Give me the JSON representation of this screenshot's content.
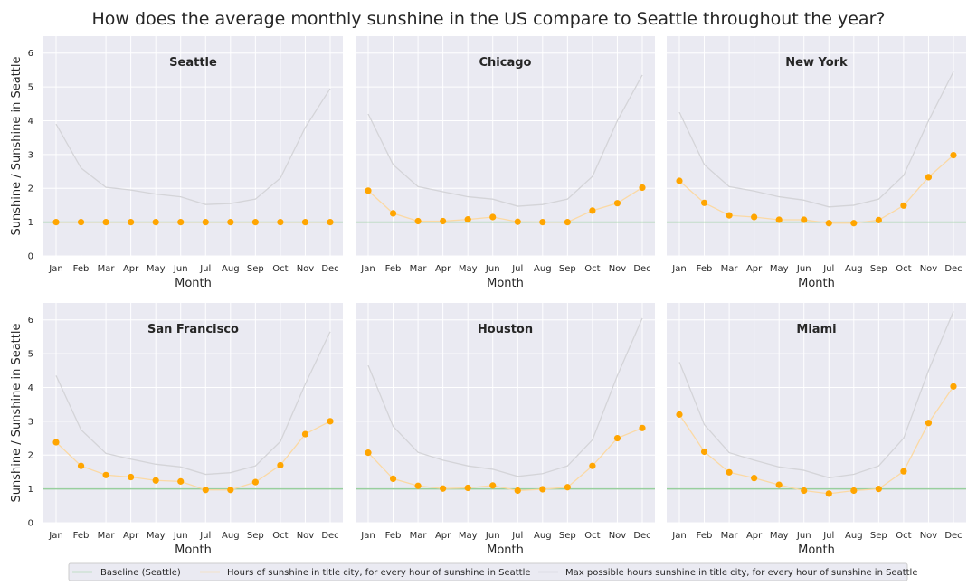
{
  "figure_title": "How does the average monthly sunshine in the US compare to Seattle throughout the year?",
  "colors": {
    "panel_bg": "#eaeaf2",
    "grid": "#ffffff",
    "baseline": "#98cf9e",
    "ratio_line": "#fbd9a4",
    "ratio_marker": "#ffa500",
    "max_line": "#d4d4d8",
    "text": "#262626"
  },
  "chart_data": [
    {
      "type": "line",
      "title": "Seattle",
      "xlabel": "Month",
      "ylabel": "Sunshine / Sunshine in Seattle",
      "categories": [
        "Jan",
        "Feb",
        "Mar",
        "Apr",
        "May",
        "Jun",
        "Jul",
        "Aug",
        "Sep",
        "Oct",
        "Nov",
        "Dec"
      ],
      "ylim": [
        0,
        6.5
      ],
      "yticks": [
        0,
        1,
        2,
        3,
        4,
        5,
        6
      ],
      "baseline": 1,
      "series": [
        {
          "name": "Hours of sunshine in title city, for every hour of sunshine in Seattle",
          "values": [
            1,
            1,
            1,
            1,
            1,
            1,
            1,
            1,
            1,
            1,
            1,
            1
          ]
        },
        {
          "name": "Max possible hours sunshine in title city, for every hour of sunshine in Seattle",
          "values": [
            3.9,
            2.6,
            2.03,
            1.95,
            1.83,
            1.75,
            1.52,
            1.55,
            1.68,
            2.3,
            3.8,
            4.95
          ]
        }
      ]
    },
    {
      "type": "line",
      "title": "Chicago",
      "xlabel": "Month",
      "ylabel": "",
      "categories": [
        "Jan",
        "Feb",
        "Mar",
        "Apr",
        "May",
        "Jun",
        "Jul",
        "Aug",
        "Sep",
        "Oct",
        "Nov",
        "Dec"
      ],
      "ylim": [
        0,
        6.5
      ],
      "baseline": 1,
      "series": [
        {
          "name": "Hours of sunshine in title city, for every hour of sunshine in Seattle",
          "values": [
            1.93,
            1.26,
            1.03,
            1.03,
            1.08,
            1.15,
            1.01,
            1.0,
            1.0,
            1.34,
            1.56,
            2.02
          ]
        },
        {
          "name": "Max possible hours sunshine in title city, for every hour of sunshine in Seattle",
          "values": [
            4.2,
            2.7,
            2.05,
            1.9,
            1.75,
            1.68,
            1.47,
            1.52,
            1.68,
            2.35,
            4.0,
            5.35
          ]
        }
      ]
    },
    {
      "type": "line",
      "title": "New York",
      "xlabel": "Month",
      "ylabel": "",
      "categories": [
        "Jan",
        "Feb",
        "Mar",
        "Apr",
        "May",
        "Jun",
        "Jul",
        "Aug",
        "Sep",
        "Oct",
        "Nov",
        "Dec"
      ],
      "ylim": [
        0,
        6.5
      ],
      "baseline": 1,
      "series": [
        {
          "name": "Hours of sunshine in title city, for every hour of sunshine in Seattle",
          "values": [
            2.22,
            1.57,
            1.2,
            1.15,
            1.07,
            1.07,
            0.97,
            0.97,
            1.06,
            1.49,
            2.33,
            2.98
          ]
        },
        {
          "name": "Max possible hours sunshine in title city, for every hour of sunshine in Seattle",
          "values": [
            4.25,
            2.7,
            2.05,
            1.92,
            1.75,
            1.65,
            1.45,
            1.5,
            1.68,
            2.38,
            4.0,
            5.45
          ]
        }
      ]
    },
    {
      "type": "line",
      "title": "San Francisco",
      "xlabel": "Month",
      "ylabel": "Sunshine / Sunshine in Seattle",
      "categories": [
        "Jan",
        "Feb",
        "Mar",
        "Apr",
        "May",
        "Jun",
        "Jul",
        "Aug",
        "Sep",
        "Oct",
        "Nov",
        "Dec"
      ],
      "ylim": [
        0,
        6.5
      ],
      "yticks": [
        0,
        1,
        2,
        3,
        4,
        5,
        6
      ],
      "baseline": 1,
      "series": [
        {
          "name": "Hours of sunshine in title city, for every hour of sunshine in Seattle",
          "values": [
            2.38,
            1.68,
            1.41,
            1.35,
            1.25,
            1.22,
            0.97,
            0.97,
            1.2,
            1.7,
            2.62,
            3.0
          ]
        },
        {
          "name": "Max possible hours sunshine in title city, for every hour of sunshine in Seattle",
          "values": [
            4.35,
            2.75,
            2.05,
            1.88,
            1.73,
            1.65,
            1.43,
            1.48,
            1.68,
            2.4,
            4.1,
            5.65
          ]
        }
      ]
    },
    {
      "type": "line",
      "title": "Houston",
      "xlabel": "Month",
      "ylabel": "",
      "categories": [
        "Jan",
        "Feb",
        "Mar",
        "Apr",
        "May",
        "Jun",
        "Jul",
        "Aug",
        "Sep",
        "Oct",
        "Nov",
        "Dec"
      ],
      "ylim": [
        0,
        6.5
      ],
      "baseline": 1,
      "series": [
        {
          "name": "Hours of sunshine in title city, for every hour of sunshine in Seattle",
          "values": [
            2.07,
            1.3,
            1.09,
            1.01,
            1.03,
            1.1,
            0.95,
            0.99,
            1.05,
            1.68,
            2.5,
            2.8
          ]
        },
        {
          "name": "Max possible hours sunshine in title city, for every hour of sunshine in Seattle",
          "values": [
            4.65,
            2.85,
            2.08,
            1.85,
            1.68,
            1.58,
            1.37,
            1.45,
            1.68,
            2.45,
            4.35,
            6.05
          ]
        }
      ]
    },
    {
      "type": "line",
      "title": "Miami",
      "xlabel": "Month",
      "ylabel": "",
      "categories": [
        "Jan",
        "Feb",
        "Mar",
        "Apr",
        "May",
        "Jun",
        "Jul",
        "Aug",
        "Sep",
        "Oct",
        "Nov",
        "Dec"
      ],
      "ylim": [
        0,
        6.5
      ],
      "baseline": 1,
      "series": [
        {
          "name": "Hours of sunshine in title city, for every hour of sunshine in Seattle",
          "values": [
            3.2,
            2.1,
            1.49,
            1.32,
            1.12,
            0.95,
            0.86,
            0.95,
            1.0,
            1.52,
            2.95,
            4.03
          ]
        },
        {
          "name": "Max possible hours sunshine in title city, for every hour of sunshine in Seattle",
          "values": [
            4.75,
            2.9,
            2.07,
            1.85,
            1.65,
            1.55,
            1.33,
            1.43,
            1.68,
            2.5,
            4.5,
            6.25
          ]
        }
      ]
    }
  ],
  "legend": {
    "placement": "bottom",
    "items": [
      {
        "label": "Baseline (Seattle)",
        "kind": "baseline"
      },
      {
        "label": "Hours of sunshine in title city, for every hour of sunshine in Seattle",
        "kind": "ratio"
      },
      {
        "label": "Max possible hours sunshine in title city, for every hour of sunshine in Seattle",
        "kind": "max"
      }
    ]
  }
}
